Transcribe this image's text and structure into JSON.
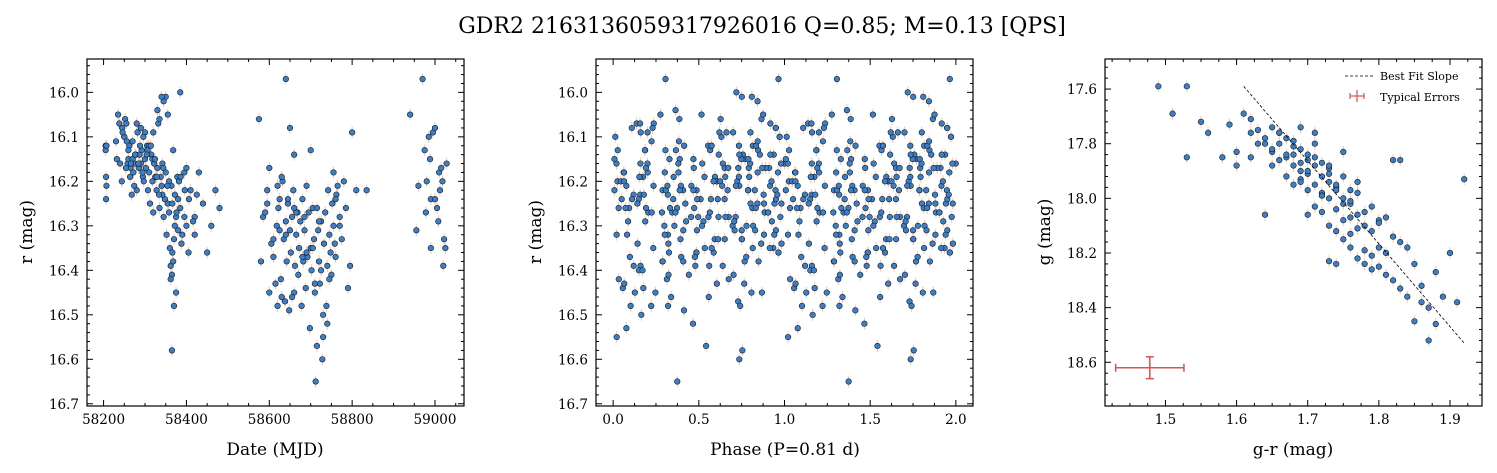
{
  "figure": {
    "title": "GDR2 2163136059317926016  Q=0.85; M=0.13 [QPS]",
    "point_color": "#3a7fc8",
    "error_color": "#f2c9b4",
    "typical_error_color": "#d9534f"
  },
  "chart_data": [
    {
      "type": "scatter",
      "xlabel": "Date (MJD)",
      "ylabel": "r (mag)",
      "xlim": [
        58160,
        59070
      ],
      "ylim": [
        16.705,
        15.925
      ],
      "y_inverted": true,
      "xticks": [
        58200,
        58400,
        58600,
        58800,
        59000
      ],
      "yticks": [
        16.0,
        16.1,
        16.2,
        16.3,
        16.4,
        16.5,
        16.6,
        16.7
      ],
      "series": [
        {
          "x": [
            58205,
            58205,
            58206,
            58207,
            58206,
            58207,
            58230,
            58235,
            58240,
            58245,
            58250,
            58252,
            58255,
            58258,
            58260,
            58262,
            58265,
            58268,
            58270,
            58272,
            58275,
            58278,
            58280,
            58282,
            58285,
            58287,
            58290,
            58292,
            58295,
            58297,
            58300,
            58302,
            58305,
            58307,
            58310,
            58312,
            58315,
            58318,
            58320,
            58322,
            58325,
            58328,
            58330,
            58332,
            58335,
            58338,
            58340,
            58342,
            58345,
            58348,
            58350,
            58352,
            58355,
            58358,
            58360,
            58362,
            58365,
            58368,
            58370,
            58372,
            58375,
            58378,
            58380,
            58385,
            58390,
            58395,
            58400,
            58365,
            58370,
            58375,
            58350,
            58345,
            58340,
            58330,
            58320,
            58310,
            58300,
            58290,
            58280,
            58270,
            58260,
            58250,
            58335,
            58355,
            58368,
            58385,
            58400,
            58410,
            58420,
            58430,
            58440,
            58450,
            58460,
            58470,
            58480,
            58420,
            58425,
            58405,
            58395,
            58388,
            58382,
            58362,
            58366,
            58372,
            58380,
            58358,
            58364,
            58342,
            58328,
            58318,
            58306,
            58296,
            58288,
            58276,
            58266,
            58256,
            58246,
            58238,
            58232,
            58244,
            58254,
            58264,
            58274,
            58284,
            58294,
            58304,
            58314,
            58324,
            58334,
            58344,
            58354,
            58366,
            58376,
            58386,
            58396,
            58406,
            58416
          ],
          "y": [
            16.12,
            16.13,
            16.19,
            16.21,
            16.24,
            16.12,
            16.11,
            16.05,
            16.16,
            16.08,
            16.1,
            16.06,
            16.07,
            16.16,
            16.15,
            16.12,
            16.17,
            16.23,
            16.15,
            16.18,
            16.16,
            16.14,
            16.22,
            16.09,
            16.17,
            16.14,
            16.16,
            16.13,
            16.19,
            16.2,
            16.15,
            16.17,
            16.12,
            16.22,
            16.18,
            16.25,
            16.14,
            16.2,
            16.27,
            16.16,
            16.19,
            16.22,
            16.17,
            16.07,
            16.26,
            16.19,
            16.21,
            16.16,
            16.28,
            16.24,
            16.18,
            16.32,
            16.25,
            16.2,
            16.35,
            16.39,
            16.41,
            16.38,
            16.33,
            16.23,
            16.28,
            16.19,
            16.31,
            16.26,
            16.32,
            16.18,
            16.3,
            16.58,
            16.48,
            16.45,
            16.01,
            16.02,
            16.01,
            16.04,
            16.09,
            16.12,
            16.09,
            16.08,
            16.07,
            16.11,
            16.13,
            16.1,
            16.06,
            16.05,
            16.13,
            16.0,
            16.17,
            16.22,
            16.28,
            16.18,
            16.25,
            16.36,
            16.3,
            16.22,
            16.26,
            16.32,
            16.23,
            16.36,
            16.28,
            16.34,
            16.2,
            16.42,
            16.36,
            16.3,
            16.24,
            16.27,
            16.21,
            16.23,
            16.19,
            16.15,
            16.13,
            16.1,
            16.12,
            16.14,
            16.16,
            16.11,
            16.09,
            16.07,
            16.15,
            16.2,
            16.17,
            16.19,
            16.21,
            16.16,
            16.18,
            16.14,
            16.12,
            16.15,
            16.23,
            16.17,
            16.21,
            16.25,
            16.27,
            16.19,
            16.22,
            16.24,
            16.29
          ]
        },
        {
          "x": [
            58575,
            58585,
            58590,
            58595,
            58600,
            58605,
            58610,
            58615,
            58618,
            58622,
            58625,
            58628,
            58630,
            58632,
            58635,
            58638,
            58640,
            58642,
            58645,
            58648,
            58650,
            58652,
            58655,
            58658,
            58660,
            58662,
            58665,
            58668,
            58670,
            58672,
            58675,
            58678,
            58680,
            58682,
            58685,
            58688,
            58690,
            58692,
            58695,
            58698,
            58700,
            58702,
            58705,
            58708,
            58710,
            58712,
            58715,
            58718,
            58720,
            58722,
            58725,
            58728,
            58730,
            58732,
            58735,
            58738,
            58740,
            58742,
            58745,
            58748,
            58750,
            58752,
            58755,
            58758,
            58760,
            58762,
            58765,
            58770,
            58775,
            58780,
            58785,
            58790,
            58795,
            58800,
            58810,
            58835,
            58640,
            58650,
            58660,
            58600,
            58620,
            58700,
            58730,
            58755,
            58745,
            58715,
            58690,
            58665,
            58645,
            58630,
            58610,
            58580,
            58595,
            58625,
            58655,
            58685,
            58705,
            58725,
            58770,
            58760,
            58740,
            58720,
            58710,
            58680,
            58660,
            58640,
            58620
          ],
          "y": [
            16.06,
            16.28,
            16.27,
            16.22,
            16.17,
            16.34,
            16.37,
            16.43,
            16.3,
            16.26,
            16.24,
            16.42,
            16.46,
            16.2,
            16.33,
            16.47,
            16.29,
            16.38,
            16.25,
            16.49,
            16.31,
            16.36,
            16.28,
            16.22,
            16.45,
            16.39,
            16.32,
            16.27,
            16.41,
            16.35,
            16.29,
            16.48,
            16.24,
            16.38,
            16.31,
            16.44,
            16.21,
            16.37,
            16.27,
            16.53,
            16.35,
            16.4,
            16.26,
            16.33,
            16.45,
            16.65,
            16.57,
            16.31,
            16.38,
            16.43,
            16.29,
            16.6,
            16.55,
            16.34,
            16.27,
            16.48,
            16.39,
            16.22,
            16.32,
            16.36,
            16.41,
            16.25,
            16.3,
            16.34,
            16.37,
            16.23,
            16.21,
            16.28,
            16.33,
            16.2,
            16.26,
            16.44,
            16.39,
            16.09,
            16.22,
            16.22,
            15.97,
            16.08,
            16.14,
            16.45,
            16.48,
            16.13,
            16.5,
            16.18,
            16.42,
            16.26,
            16.36,
            16.27,
            16.24,
            16.19,
            16.33,
            16.38,
            16.25,
            16.31,
            16.46,
            16.28,
            16.35,
            16.4,
            16.3,
            16.24,
            16.52,
            16.29,
            16.43,
            16.37,
            16.26,
            16.32,
            16.21
          ]
        },
        {
          "x": [
            58940,
            58960,
            58970,
            58975,
            58978,
            58980,
            58985,
            58988,
            58990,
            58995,
            59000,
            59005,
            59008,
            59010,
            59015,
            59018,
            59020,
            59022,
            59025,
            59028,
            58990,
            59000,
            59012,
            58955
          ],
          "y": [
            16.05,
            16.21,
            15.97,
            16.13,
            16.27,
            16.2,
            16.1,
            16.15,
            16.24,
            16.09,
            16.08,
            16.26,
            16.29,
            16.18,
            16.17,
            16.2,
            16.39,
            16.33,
            16.35,
            16.16,
            16.35,
            16.24,
            16.22,
            16.31
          ]
        }
      ]
    },
    {
      "type": "scatter",
      "xlabel": "Phase (P=0.81 d)",
      "ylabel": "r (mag)",
      "xlim": [
        -0.1,
        2.1
      ],
      "ylim": [
        16.705,
        15.925
      ],
      "y_inverted": true,
      "xticks": [
        0.0,
        0.5,
        1.0,
        1.5,
        2.0
      ],
      "yticks": [
        16.0,
        16.1,
        16.2,
        16.3,
        16.4,
        16.5,
        16.6,
        16.7
      ],
      "phased_from_first_panel": true,
      "period": 0.81
    },
    {
      "type": "scatter",
      "xlabel": "g-r (mag)",
      "ylabel": "g (mag)",
      "xlim": [
        1.415,
        1.945
      ],
      "ylim": [
        18.76,
        17.49
      ],
      "y_inverted": true,
      "xticks": [
        1.5,
        1.6,
        1.7,
        1.8,
        1.9
      ],
      "yticks": [
        17.6,
        17.8,
        18.0,
        18.2,
        18.4,
        18.6
      ],
      "legend": {
        "position": "top-right",
        "entries": [
          "Best Fit Slope",
          "Typical Errors"
        ]
      },
      "fit_line": {
        "x": [
          1.61,
          1.92
        ],
        "y": [
          17.59,
          18.53
        ]
      },
      "typical_error": {
        "x": 1.478,
        "y": 18.62,
        "xerr": 0.048,
        "yerr": 0.04
      },
      "x": [
        1.49,
        1.51,
        1.53,
        1.53,
        1.55,
        1.56,
        1.58,
        1.59,
        1.6,
        1.61,
        1.62,
        1.62,
        1.63,
        1.63,
        1.64,
        1.64,
        1.65,
        1.65,
        1.65,
        1.66,
        1.66,
        1.66,
        1.67,
        1.67,
        1.67,
        1.68,
        1.68,
        1.68,
        1.68,
        1.69,
        1.69,
        1.69,
        1.69,
        1.7,
        1.7,
        1.7,
        1.7,
        1.7,
        1.71,
        1.71,
        1.71,
        1.71,
        1.72,
        1.72,
        1.72,
        1.72,
        1.73,
        1.73,
        1.73,
        1.73,
        1.73,
        1.74,
        1.74,
        1.74,
        1.74,
        1.75,
        1.75,
        1.75,
        1.75,
        1.76,
        1.76,
        1.76,
        1.76,
        1.77,
        1.77,
        1.77,
        1.78,
        1.78,
        1.78,
        1.79,
        1.79,
        1.79,
        1.8,
        1.8,
        1.8,
        1.81,
        1.81,
        1.82,
        1.82,
        1.83,
        1.83,
        1.84,
        1.84,
        1.85,
        1.86,
        1.86,
        1.87,
        1.87,
        1.88,
        1.89,
        1.9,
        1.91,
        1.92,
        1.65,
        1.67,
        1.69,
        1.71,
        1.73,
        1.75,
        1.77,
        1.79,
        1.81,
        1.64,
        1.66,
        1.68,
        1.7,
        1.72,
        1.74,
        1.76,
        1.78,
        1.8,
        1.82,
        1.71,
        1.73,
        1.69,
        1.75,
        1.77,
        1.83,
        1.85,
        1.88,
        1.62,
        1.6,
        1.74,
        1.76,
        1.72
      ],
      "y": [
        17.59,
        17.69,
        17.85,
        17.59,
        17.72,
        17.76,
        17.85,
        17.73,
        17.83,
        17.69,
        17.76,
        17.71,
        17.8,
        17.75,
        17.78,
        18.06,
        17.74,
        17.83,
        17.88,
        17.76,
        17.86,
        17.8,
        17.78,
        17.92,
        17.85,
        17.84,
        17.88,
        17.79,
        17.95,
        17.87,
        17.82,
        17.93,
        17.9,
        17.86,
        17.91,
        17.84,
        17.97,
        18.06,
        17.88,
        17.95,
        18.03,
        17.85,
        17.92,
        17.98,
        17.87,
        18.05,
        17.94,
        18.0,
        18.1,
        17.89,
        18.23,
        17.96,
        18.04,
        18.12,
        18.24,
        17.92,
        18.08,
        18.02,
        18.15,
        17.97,
        18.07,
        18.13,
        18.18,
        18.06,
        18.11,
        18.22,
        18.1,
        18.19,
        18.24,
        18.12,
        18.21,
        18.26,
        18.18,
        18.25,
        18.08,
        18.2,
        18.28,
        17.86,
        18.3,
        17.86,
        18.33,
        18.36,
        18.18,
        18.45,
        18.38,
        18.32,
        18.52,
        18.4,
        18.46,
        18.36,
        18.2,
        18.38,
        17.93,
        17.82,
        17.84,
        17.94,
        17.8,
        17.88,
        17.83,
        17.98,
        18.03,
        18.07,
        17.8,
        17.76,
        17.81,
        17.9,
        17.99,
        17.95,
        18.02,
        18.05,
        18.09,
        18.14,
        17.76,
        17.91,
        17.74,
        18.0,
        17.94,
        18.16,
        18.24,
        18.27,
        17.85,
        17.88,
        17.97,
        18.01,
        17.99
      ]
    }
  ]
}
